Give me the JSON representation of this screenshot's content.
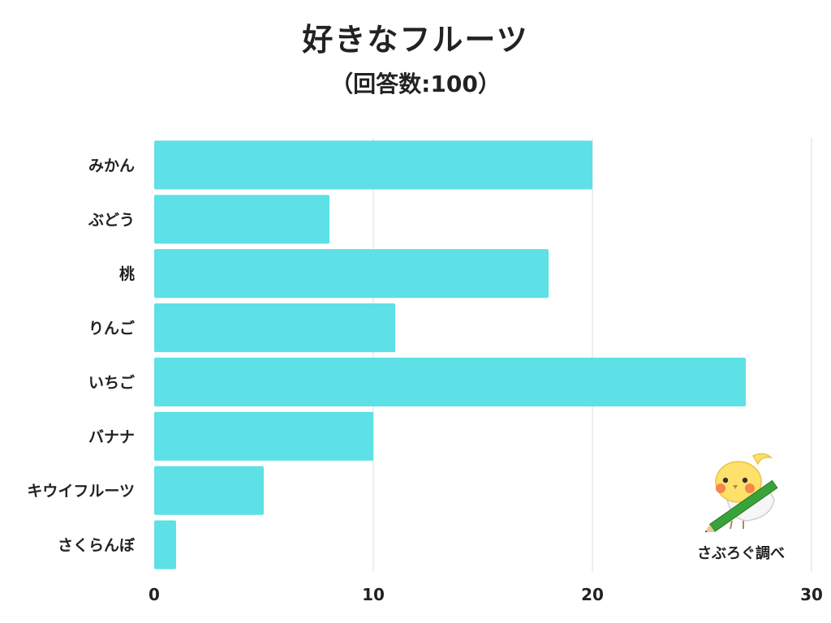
{
  "colors": {
    "bar": "#5de0e6",
    "grid": "#dddddd",
    "text": "#222222",
    "mascot_body": "#fde16a",
    "mascot_cheek": "#f4874b",
    "pencil": "#3aa23a"
  },
  "credit": "さぶろぐ調べ",
  "mascot_icon": "bird-holding-pencil",
  "chart_data": {
    "type": "bar",
    "orientation": "horizontal",
    "title": "好きなフルーツ",
    "subtitle": "（回答数:100）",
    "categories": [
      "みかん",
      "ぶどう",
      "桃",
      "りんご",
      "いちご",
      "バナナ",
      "キウイフルーツ",
      "さくらんぼ"
    ],
    "values": [
      20,
      8,
      18,
      11,
      27,
      10,
      5,
      1
    ],
    "xlim": [
      0,
      30
    ],
    "xticks": [
      0,
      10,
      20,
      30
    ],
    "grid": true,
    "legend": "none"
  }
}
